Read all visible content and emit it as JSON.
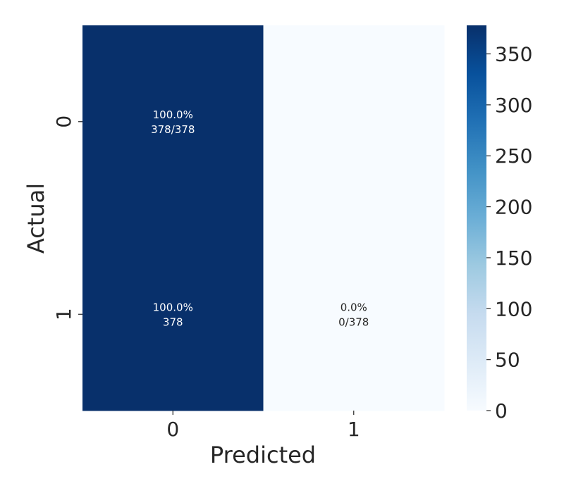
{
  "chart_data": {
    "type": "heatmap",
    "xlabel": "Predicted",
    "ylabel": "Actual",
    "x_categories": [
      "0",
      "1"
    ],
    "y_categories": [
      "0",
      "1"
    ],
    "cells": [
      {
        "row": 0,
        "col": 0,
        "value": 378,
        "line1": "100.0%",
        "line2": "378/378"
      },
      {
        "row": 0,
        "col": 1,
        "value": 0,
        "line1": "",
        "line2": ""
      },
      {
        "row": 1,
        "col": 0,
        "value": 378,
        "line1": "100.0%",
        "line2": "378"
      },
      {
        "row": 1,
        "col": 1,
        "value": 0,
        "line1": "0.0%",
        "line2": "0/378"
      }
    ],
    "colorbar": {
      "min": 0,
      "max": 378,
      "ticks": [
        0,
        50,
        100,
        150,
        200,
        250,
        300,
        350
      ],
      "colormap": "Blues"
    },
    "colors": {
      "high": "#08306b",
      "low": "#f7fbff",
      "text_dark": "#262626"
    }
  }
}
